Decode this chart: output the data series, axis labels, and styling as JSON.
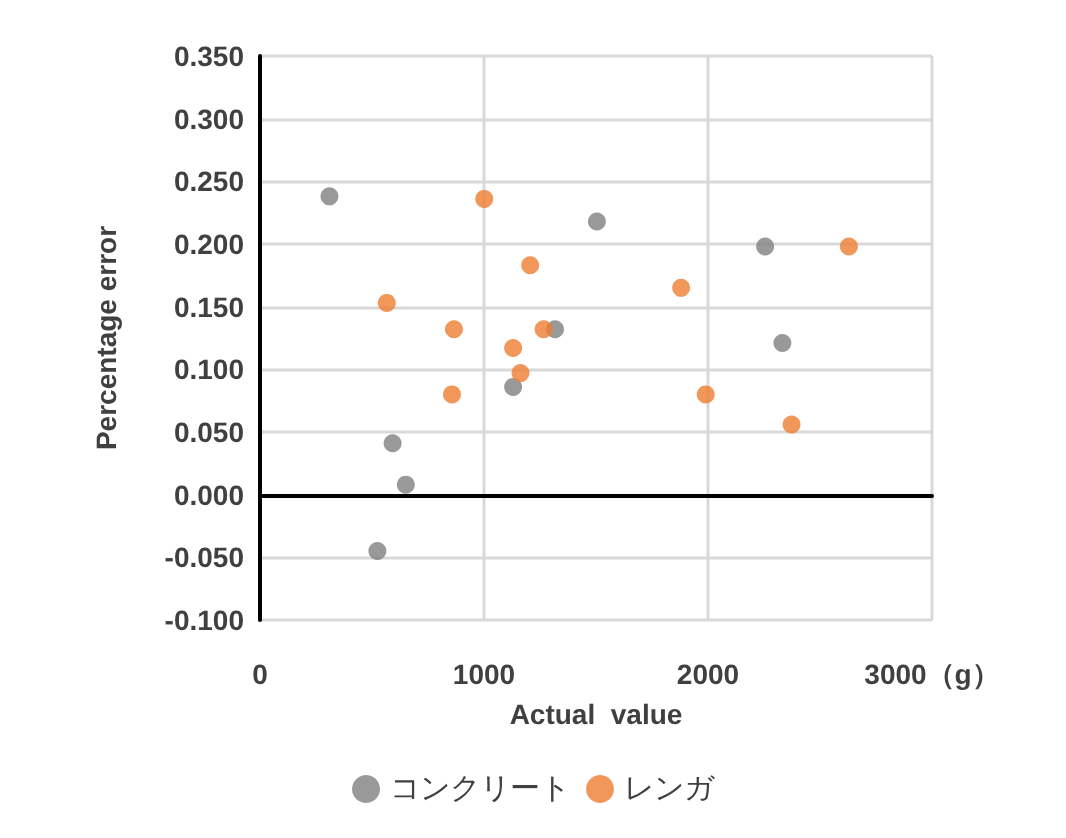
{
  "chart_data": {
    "type": "scatter",
    "xlabel": "Actual  value",
    "ylabel": "Percentage error",
    "series": [
      {
        "name": "コンクリート",
        "color": "#808080",
        "x": [
          310,
          1504,
          2255,
          2332,
          1317,
          1130,
          592,
          651,
          524
        ],
        "values": [
          0.238,
          0.218,
          0.198,
          0.121,
          0.132,
          0.086,
          0.041,
          0.008,
          -0.045
        ]
      },
      {
        "name": "レンガ",
        "color": "#ed7d31",
        "x": [
          1001,
          1206,
          566,
          866,
          1266,
          1130,
          1163,
          857,
          2629,
          1880,
          1990,
          2373
        ],
        "values": [
          0.236,
          0.183,
          0.153,
          0.132,
          0.132,
          0.117,
          0.097,
          0.08,
          0.198,
          0.165,
          0.08,
          0.056
        ]
      }
    ],
    "xlim": [
      0,
      3000
    ],
    "xticks": [
      0,
      1000,
      2000,
      {
        "value": 3000,
        "label": "3000（g）"
      }
    ],
    "ylim": [
      -0.1,
      0.35
    ],
    "yticks": [
      {
        "value": -0.1,
        "label": "-0.100"
      },
      {
        "value": -0.05,
        "label": "-0.050"
      },
      {
        "value": 0,
        "label": "0.000"
      },
      {
        "value": 0.05,
        "label": "0.050"
      },
      {
        "value": 0.1,
        "label": "0.100"
      },
      {
        "value": 0.15,
        "label": "0.150"
      },
      {
        "value": 0.2,
        "label": "0.200"
      },
      {
        "value": 0.25,
        "label": "0.250"
      },
      {
        "value": 0.3,
        "label": "0.300"
      },
      {
        "value": 0.35,
        "label": "0.350"
      }
    ],
    "grid": true,
    "legend": "bottom",
    "marker": "circle"
  }
}
